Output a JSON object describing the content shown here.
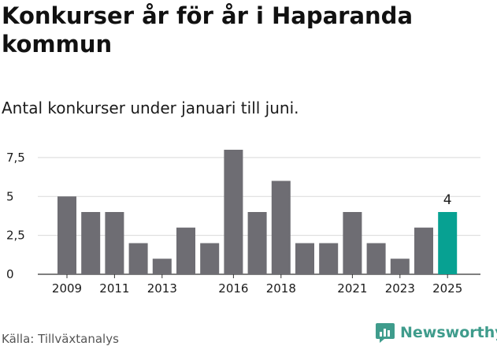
{
  "title": "Konkurser år för år i Haparanda kommun",
  "subtitle": "Antal konkurser under januari till juni.",
  "source": "Källa: Tillväxtanalys",
  "brand": "Newsworthy",
  "colors": {
    "bar": "#6e6d73",
    "highlight": "#07a192",
    "grid": "#d9d9d9",
    "brand": "#3f9c8c"
  },
  "chart_data": {
    "type": "bar",
    "categories": [
      "2009",
      "2010",
      "2011",
      "2012",
      "2013",
      "2014",
      "2015",
      "2016",
      "2017",
      "2018",
      "2019",
      "2020",
      "2021",
      "2022",
      "2023",
      "2024",
      "2025"
    ],
    "values": [
      5,
      4,
      4,
      2,
      1,
      3,
      2,
      8,
      4,
      6,
      2,
      2,
      4,
      2,
      1,
      3,
      4
    ],
    "x_tick_labels": [
      "2009",
      "2011",
      "2013",
      "2016",
      "2018",
      "2021",
      "2023",
      "2025"
    ],
    "y_ticks": [
      0,
      2.5,
      5,
      7.5
    ],
    "y_tick_labels": [
      "0",
      "2,5",
      "5",
      "7,5"
    ],
    "ylim": [
      0,
      8
    ],
    "highlight_category": "2025",
    "data_label": "4",
    "grid": true
  }
}
